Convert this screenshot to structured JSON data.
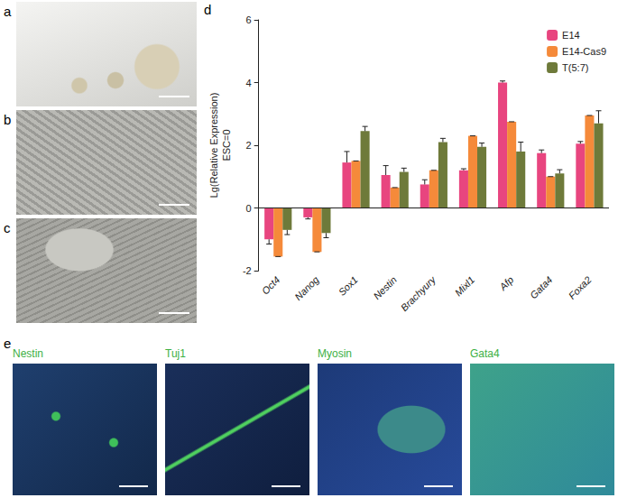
{
  "panel_letters": [
    "a",
    "b",
    "c",
    "d",
    "e"
  ],
  "panel_e_labels": [
    "Nestin",
    "Tuj1",
    "Myosin",
    "Gata4"
  ],
  "chart_data": {
    "type": "bar",
    "ylabel": "Lg(Relative Expression)\nESC=0",
    "categories": [
      "Oct4",
      "Nanog",
      "Sox1",
      "Nestin",
      "Brachyury",
      "Mixl1",
      "Afp",
      "Gata4",
      "Foxa2"
    ],
    "series": [
      {
        "name": "E14",
        "color": "#e8457f",
        "values": [
          -1.0,
          -0.3,
          1.45,
          1.05,
          0.75,
          1.2,
          4.0,
          1.75,
          2.05
        ],
        "errors": [
          0.15,
          0.05,
          0.35,
          0.3,
          0.15,
          0.05,
          0.05,
          0.1,
          0.07
        ]
      },
      {
        "name": "E14-Cas9",
        "color": "#f58a3a",
        "values": [
          -1.55,
          -1.4,
          1.5,
          0.65,
          1.2,
          2.3,
          2.75,
          1.0,
          2.95
        ],
        "errors": [
          0,
          0,
          0,
          0,
          0,
          0,
          0,
          0,
          0
        ]
      },
      {
        "name": "T(5:7)",
        "color": "#6e7a3a",
        "values": [
          -0.7,
          -0.8,
          2.45,
          1.15,
          2.1,
          1.95,
          1.8,
          1.1,
          2.7
        ],
        "errors": [
          0.15,
          0.15,
          0.15,
          0.12,
          0.12,
          0.12,
          0.3,
          0.12,
          0.4
        ]
      }
    ],
    "ylim": [
      -2,
      6
    ],
    "yticks": [
      -2,
      0,
      2,
      4,
      6
    ],
    "grid": false,
    "legend": "top-right"
  }
}
